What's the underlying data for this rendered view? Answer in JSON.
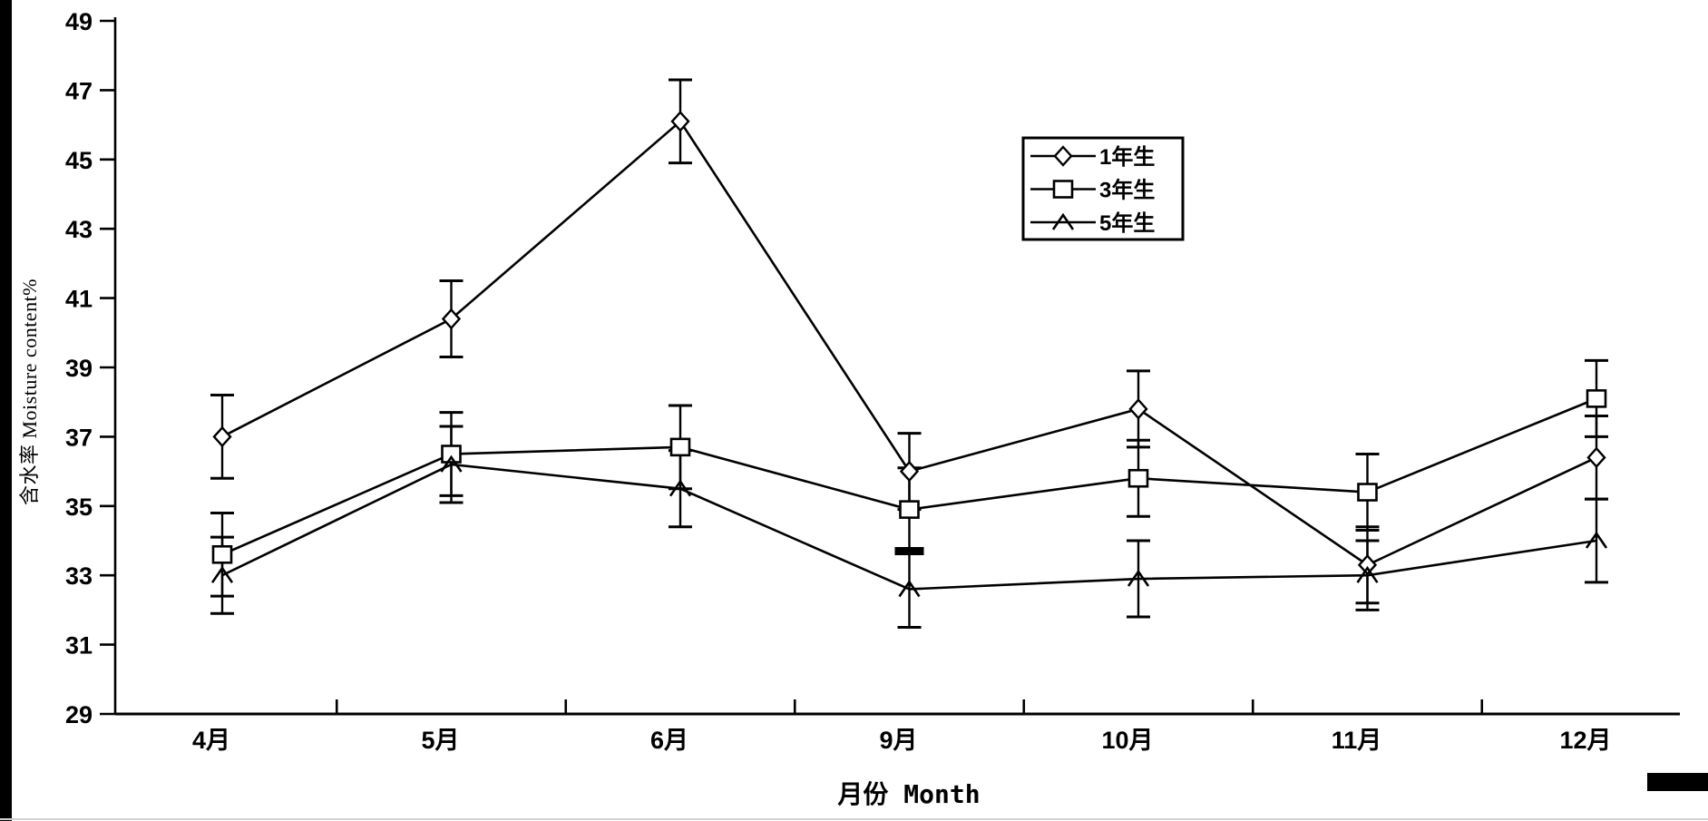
{
  "page": {
    "background": "#ffffff",
    "ink_color": "#000000",
    "scan_artifacts": [
      "left-edge-black-bar",
      "bottom-right-black-bar",
      "bottom-faint-line"
    ]
  },
  "chart_data": {
    "type": "line",
    "error_bars": true,
    "title": "",
    "xlabel": "月份 Month",
    "ylabel": "含水率 Moisture content%",
    "categories": [
      "4月",
      "5月",
      "6月",
      "9月",
      "10月",
      "11月",
      "12月"
    ],
    "ylim": [
      29,
      49
    ],
    "y_ticks": [
      29,
      31,
      33,
      35,
      37,
      39,
      41,
      43,
      45,
      47,
      49
    ],
    "grid": false,
    "legend": {
      "position": "top-center",
      "entries": [
        "1年生",
        "3年生",
        "5年生"
      ]
    },
    "series": [
      {
        "name": "1年生",
        "marker": "diamond",
        "values": [
          37.0,
          40.4,
          46.1,
          36.0,
          37.8,
          33.3,
          36.4
        ],
        "errors": [
          1.2,
          1.1,
          1.2,
          1.1,
          1.1,
          1.1,
          1.2
        ]
      },
      {
        "name": "3年生",
        "marker": "square",
        "values": [
          33.6,
          36.5,
          36.7,
          34.9,
          35.8,
          35.4,
          38.1
        ],
        "errors": [
          1.2,
          1.2,
          1.2,
          1.2,
          1.1,
          1.1,
          1.1
        ]
      },
      {
        "name": "5年生",
        "marker": "caret",
        "values": [
          33.0,
          36.2,
          35.5,
          32.6,
          32.9,
          33.0,
          34.0
        ],
        "errors": [
          1.1,
          1.1,
          1.1,
          1.1,
          1.1,
          1.0,
          1.2
        ]
      }
    ],
    "thick_error_cap": {
      "series_index": 1,
      "point_index": 3,
      "side": "bottom"
    }
  }
}
